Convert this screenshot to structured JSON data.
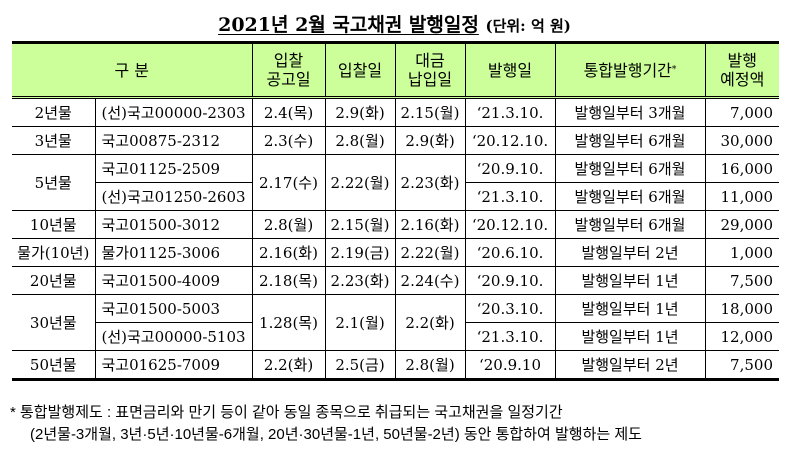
{
  "title": "2021년 2월 국고채권 발행일정",
  "unit": "(단위: 억 원)",
  "headers": [
    "구 분",
    "입찰\n공고일",
    "입찰일",
    "대금\n납입일",
    "발행일",
    "통합발행기간",
    "발행\n예정액"
  ],
  "header_sup": "*",
  "rows": [
    {
      "cat": "2년물",
      "cat_span": 1,
      "code": "(선)국고00000-2303",
      "notice": "2.4(목)",
      "bid": "2.9(화)",
      "pay": "2.15(월)",
      "span": 1,
      "issue": "‘21.3.10.",
      "period": "발행일부터 3개월",
      "amount": "7,000"
    },
    {
      "cat": "3년물",
      "cat_span": 1,
      "code": "국고00875-2312",
      "notice": "2.3(수)",
      "bid": "2.8(월)",
      "pay": "2.9(화)",
      "span": 1,
      "issue": "‘20.12.10.",
      "period": "발행일부터 6개월",
      "amount": "30,000"
    },
    {
      "cat": "5년물",
      "cat_span": 2,
      "code": "국고01125-2509",
      "notice": "2.17(수)",
      "bid": "2.22(월)",
      "pay": "2.23(화)",
      "span": 2,
      "issue": "‘20.9.10.",
      "period": "발행일부터 6개월",
      "amount": "16,000"
    },
    {
      "code": "(선)국고01250-2603",
      "issue": "‘21.3.10.",
      "period": "발행일부터 6개월",
      "amount": "11,000"
    },
    {
      "cat": "10년물",
      "cat_span": 1,
      "code": "국고01500-3012",
      "notice": "2.8(월)",
      "bid": "2.15(월)",
      "pay": "2.16(화)",
      "span": 1,
      "issue": "‘20.12.10.",
      "period": "발행일부터 6개월",
      "amount": "29,000"
    },
    {
      "cat": "물가(10년)",
      "cat_span": 1,
      "code": "물가01125-3006",
      "notice": "2.16(화)",
      "bid": "2.19(금)",
      "pay": "2.22(월)",
      "span": 1,
      "issue": "‘20.6.10.",
      "period": "발행일부터 2년",
      "amount": "1,000"
    },
    {
      "cat": "20년물",
      "cat_span": 1,
      "code": "국고01500-4009",
      "notice": "2.18(목)",
      "bid": "2.23(화)",
      "pay": "2.24(수)",
      "span": 1,
      "issue": "‘20.9.10.",
      "period": "발행일부터 1년",
      "amount": "7,500"
    },
    {
      "cat": "30년물",
      "cat_span": 2,
      "code": "국고01500-5003",
      "notice": "1.28(목)",
      "bid": "2.1(월)",
      "pay": "2.2(화)",
      "span": 2,
      "issue": "‘20.3.10.",
      "period": "발행일부터 1년",
      "amount": "18,000"
    },
    {
      "code": "(선)국고00000-5103",
      "issue": "‘21.3.10.",
      "period": "발행일부터 1년",
      "amount": "12,000"
    },
    {
      "cat": "50년물",
      "cat_span": 1,
      "code": "국고01625-7009",
      "notice": "2.2(화)",
      "bid": "2.5(금)",
      "pay": "2.8(월)",
      "span": 1,
      "issue": "‘20.9.10",
      "period": "발행일부터 2년",
      "amount": "7,500"
    }
  ],
  "note": {
    "line1": "* 통합발행제도 : 표면금리와 만기 등이 같아 동일 종목으로 취급되는 국고채권을 일정기간",
    "line2": "(2년물-3개월, 3년·5년·10년물-6개월, 20년·30년물-1년, 50년물-2년) 동안 통합하여 발행하는 제도"
  }
}
